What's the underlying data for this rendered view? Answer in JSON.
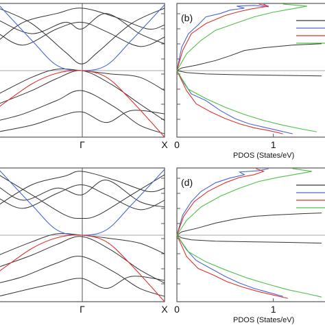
{
  "colors": {
    "black": "#333333",
    "blue": "#4a63d8",
    "red": "#e0302a",
    "green": "#4cc046",
    "frame": "#555555",
    "fermi": "#888888"
  },
  "chart_data": [
    {
      "type": "line",
      "panel": "band-top",
      "x_tick_labels": [
        "Γ",
        "X"
      ],
      "xlim": [
        -1,
        1
      ],
      "ylim": [
        -1,
        1
      ],
      "series": [
        {
          "color": "black",
          "x": [
            -1,
            -0.6,
            -0.2,
            0,
            0.2,
            0.6,
            1
          ],
          "y": [
            0.93,
            0.7,
            0.28,
            0.1,
            0.28,
            0.7,
            0.93
          ]
        },
        {
          "color": "black",
          "x": [
            -1,
            -0.6,
            -0.2,
            0,
            0.3,
            0.7,
            1
          ],
          "y": [
            0.75,
            0.55,
            0.72,
            0.62,
            0.85,
            0.55,
            0.4
          ]
        },
        {
          "color": "black",
          "x": [
            -1,
            -0.7,
            -0.3,
            0,
            0.3,
            0.7,
            1
          ],
          "y": [
            0.55,
            0.38,
            0.62,
            0.72,
            0.58,
            0.36,
            0.5
          ]
        },
        {
          "color": "black",
          "x": [
            -1,
            -0.7,
            -0.3,
            0,
            0.4,
            0.8,
            1
          ],
          "y": [
            0.45,
            0.72,
            0.85,
            0.93,
            0.8,
            0.62,
            0.68
          ]
        },
        {
          "color": "black",
          "x": [
            -1,
            -0.6,
            -0.3,
            0,
            0.35,
            0.7,
            1
          ],
          "y": [
            -0.35,
            -0.1,
            0.02,
            0.0,
            -0.05,
            -0.1,
            -0.3
          ]
        },
        {
          "color": "black",
          "x": [
            -1,
            -0.6,
            -0.3,
            0,
            0.35,
            0.7,
            1
          ],
          "y": [
            -0.5,
            -0.3,
            -0.12,
            0.0,
            -0.2,
            -0.5,
            -0.75
          ]
        },
        {
          "color": "black",
          "x": [
            -1,
            -0.7,
            -0.3,
            0,
            0.4,
            0.7,
            1
          ],
          "y": [
            -0.75,
            -0.65,
            -0.45,
            -0.3,
            -0.55,
            -0.82,
            -0.95
          ]
        },
        {
          "color": "black",
          "x": [
            -1,
            -0.6,
            -0.3,
            0,
            0.3,
            0.6,
            1
          ],
          "y": [
            -0.92,
            -0.82,
            -0.7,
            -0.62,
            -0.78,
            -0.6,
            -0.65
          ]
        },
        {
          "color": "blue",
          "x": [
            -1,
            -0.6,
            -0.3,
            0,
            0.3,
            0.6,
            1
          ],
          "y": [
            0.98,
            0.45,
            0.08,
            0.0,
            0.08,
            0.45,
            0.98
          ]
        },
        {
          "color": "red",
          "x": [
            -1,
            -0.6,
            -0.3,
            0,
            0.3,
            0.6,
            1
          ],
          "y": [
            -0.55,
            -0.2,
            -0.04,
            0.0,
            -0.1,
            -0.45,
            -1.0
          ]
        }
      ]
    },
    {
      "type": "line",
      "panel": "pdos-top",
      "panel_label": "(b)",
      "xlabel": "PDOS (States/eV)",
      "x_tick_labels": [
        "0",
        "1"
      ],
      "xlim": [
        0,
        1.55
      ],
      "ylim": [
        -1,
        1
      ],
      "series": [
        {
          "color": "black",
          "x": [
            0,
            0.05,
            0.2,
            0.4,
            0.55,
            0.7,
            0.9,
            1.2,
            1.5
          ],
          "y": [
            0,
            0.04,
            0.08,
            0.15,
            0.22,
            0.3,
            0.34,
            0.38,
            0.4
          ]
        },
        {
          "color": "black",
          "x": [
            0,
            0.1,
            0.3,
            0.6,
            1.0,
            1.5
          ],
          "y": [
            0,
            -0.03,
            -0.05,
            -0.06,
            -0.07,
            -0.08
          ]
        },
        {
          "color": "blue",
          "x": [
            0,
            0.05,
            0.12,
            0.22,
            0.3,
            0.45,
            0.55,
            0.7,
            0.62,
            0.8,
            0.95,
            0.9
          ],
          "y": [
            0,
            0.35,
            0.55,
            0.68,
            0.8,
            0.85,
            0.9,
            0.93,
            0.96,
            0.97,
            0.95,
            0.99
          ]
        },
        {
          "color": "blue",
          "x": [
            0,
            0.08,
            0.15,
            0.3,
            0.45,
            0.6,
            0.75,
            0.9,
            1.05,
            1.2
          ],
          "y": [
            0,
            -0.2,
            -0.35,
            -0.45,
            -0.6,
            -0.72,
            -0.8,
            -0.85,
            -0.9,
            -0.95
          ]
        },
        {
          "color": "red",
          "x": [
            0,
            0.06,
            0.15,
            0.3,
            0.5,
            0.65,
            0.78,
            0.95,
            0.85
          ],
          "y": [
            0,
            0.3,
            0.55,
            0.7,
            0.82,
            0.88,
            0.92,
            0.96,
            0.99
          ]
        },
        {
          "color": "red",
          "x": [
            0,
            0.1,
            0.2,
            0.35,
            0.5,
            0.65,
            0.8,
            0.95,
            1.1
          ],
          "y": [
            0,
            -0.3,
            -0.5,
            -0.62,
            -0.72,
            -0.8,
            -0.86,
            -0.9,
            -0.95
          ]
        },
        {
          "color": "green",
          "x": [
            0,
            0.1,
            0.25,
            0.4,
            0.6,
            0.8,
            1.0,
            1.2,
            1.35,
            1.1
          ],
          "y": [
            0,
            0.25,
            0.45,
            0.6,
            0.7,
            0.8,
            0.87,
            0.92,
            0.96,
            0.99
          ]
        },
        {
          "color": "green",
          "x": [
            0,
            0.12,
            0.3,
            0.5,
            0.7,
            0.9,
            1.1,
            1.3,
            1.45
          ],
          "y": [
            0,
            -0.28,
            -0.42,
            -0.55,
            -0.66,
            -0.75,
            -0.82,
            -0.88,
            -0.92
          ]
        }
      ]
    },
    {
      "type": "line",
      "panel": "band-bottom",
      "x_tick_labels": [
        "Γ",
        "X"
      ],
      "xlim": [
        -1,
        1
      ],
      "ylim": [
        -1,
        1
      ],
      "series": [
        {
          "color": "black",
          "x": [
            -1,
            -0.6,
            -0.2,
            0,
            0.2,
            0.6,
            1
          ],
          "y": [
            0.9,
            0.6,
            0.3,
            0.25,
            0.3,
            0.6,
            0.9
          ]
        },
        {
          "color": "black",
          "x": [
            -1,
            -0.7,
            -0.3,
            0,
            0.3,
            0.7,
            1
          ],
          "y": [
            0.72,
            0.52,
            0.7,
            0.6,
            0.82,
            0.5,
            0.42
          ]
        },
        {
          "color": "black",
          "x": [
            -1,
            -0.7,
            -0.3,
            0,
            0.3,
            0.7,
            1
          ],
          "y": [
            0.55,
            0.4,
            0.62,
            0.75,
            0.6,
            0.38,
            0.52
          ]
        },
        {
          "color": "black",
          "x": [
            -1,
            -0.6,
            -0.2,
            0,
            0.4,
            0.8,
            1
          ],
          "y": [
            0.45,
            0.75,
            0.88,
            0.95,
            0.82,
            0.65,
            0.7
          ]
        },
        {
          "color": "black",
          "x": [
            -1,
            -0.6,
            -0.3,
            0,
            0.35,
            0.7,
            1
          ],
          "y": [
            -0.3,
            -0.1,
            0.02,
            0.0,
            -0.05,
            -0.12,
            -0.28
          ]
        },
        {
          "color": "black",
          "x": [
            -1,
            -0.6,
            -0.3,
            0,
            0.35,
            0.7,
            1
          ],
          "y": [
            -0.48,
            -0.3,
            -0.14,
            -0.02,
            -0.22,
            -0.52,
            -0.72
          ]
        },
        {
          "color": "black",
          "x": [
            -1,
            -0.7,
            -0.3,
            0,
            0.4,
            0.7,
            1
          ],
          "y": [
            -0.72,
            -0.62,
            -0.42,
            -0.32,
            -0.56,
            -0.8,
            -0.92
          ]
        },
        {
          "color": "black",
          "x": [
            -1,
            -0.6,
            -0.3,
            0,
            0.3,
            0.6,
            1
          ],
          "y": [
            -0.92,
            -0.8,
            -0.72,
            -0.65,
            -0.8,
            -0.62,
            -0.68
          ]
        },
        {
          "color": "blue",
          "x": [
            -1,
            -0.6,
            -0.3,
            0,
            0.3,
            0.6,
            1
          ],
          "y": [
            0.98,
            0.45,
            0.08,
            0.0,
            0.08,
            0.45,
            0.98
          ]
        },
        {
          "color": "red",
          "x": [
            -1,
            -0.6,
            -0.3,
            0,
            0.3,
            0.6,
            1
          ],
          "y": [
            -0.55,
            -0.2,
            -0.04,
            0.0,
            -0.1,
            -0.45,
            -1.0
          ]
        }
      ]
    },
    {
      "type": "line",
      "panel": "pdos-bottom",
      "panel_label": "(d)",
      "xlabel": "PDOS (States/eV)",
      "x_tick_labels": [
        "0",
        "1"
      ],
      "xlim": [
        0,
        1.55
      ],
      "ylim": [
        -1,
        1
      ],
      "series": [
        {
          "color": "black",
          "x": [
            0,
            0.05,
            0.2,
            0.4,
            0.6,
            0.8,
            1.0,
            1.3,
            1.5
          ],
          "y": [
            0,
            0.05,
            0.1,
            0.18,
            0.24,
            0.28,
            0.3,
            0.32,
            0.33
          ]
        },
        {
          "color": "black",
          "x": [
            0,
            0.05,
            0.15,
            0.4,
            0.8,
            1.2,
            1.5
          ],
          "y": [
            0,
            -0.04,
            -0.07,
            -0.09,
            -0.1,
            -0.11,
            -0.12
          ]
        },
        {
          "color": "blue",
          "x": [
            0,
            0.06,
            0.15,
            0.25,
            0.4,
            0.55,
            0.7,
            0.65,
            0.85,
            0.95
          ],
          "y": [
            0,
            0.3,
            0.5,
            0.65,
            0.78,
            0.85,
            0.9,
            0.94,
            0.96,
            0.99
          ]
        },
        {
          "color": "blue",
          "x": [
            0,
            0.1,
            0.2,
            0.35,
            0.5,
            0.65,
            0.8,
            0.95,
            1.1
          ],
          "y": [
            0,
            -0.22,
            -0.38,
            -0.5,
            -0.62,
            -0.72,
            -0.8,
            -0.86,
            -0.92
          ]
        },
        {
          "color": "red",
          "x": [
            0,
            0.07,
            0.18,
            0.32,
            0.5,
            0.65,
            0.8,
            0.9,
            0.82
          ],
          "y": [
            0,
            0.28,
            0.5,
            0.65,
            0.78,
            0.86,
            0.9,
            0.95,
            0.99
          ]
        },
        {
          "color": "red",
          "x": [
            0,
            0.1,
            0.22,
            0.38,
            0.52,
            0.68,
            0.85,
            1.0,
            1.15
          ],
          "y": [
            0,
            -0.32,
            -0.5,
            -0.6,
            -0.7,
            -0.78,
            -0.85,
            -0.9,
            -0.95
          ]
        },
        {
          "color": "green",
          "x": [
            0,
            0.1,
            0.25,
            0.45,
            0.65,
            0.85,
            1.05,
            1.25,
            1.4,
            1.2
          ],
          "y": [
            0,
            0.22,
            0.42,
            0.58,
            0.7,
            0.8,
            0.86,
            0.91,
            0.95,
            0.99
          ]
        },
        {
          "color": "green",
          "x": [
            0,
            0.12,
            0.3,
            0.5,
            0.72,
            0.95,
            1.15,
            1.35,
            1.5
          ],
          "y": [
            0,
            -0.25,
            -0.4,
            -0.52,
            -0.64,
            -0.74,
            -0.82,
            -0.88,
            -0.93
          ]
        }
      ]
    }
  ]
}
